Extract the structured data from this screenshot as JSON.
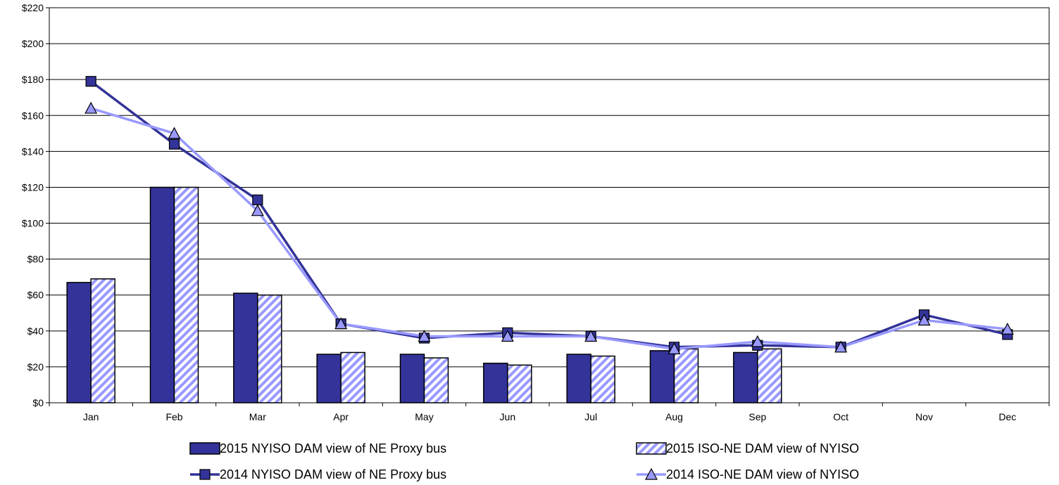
{
  "chart_data": {
    "type": "bar",
    "categories": [
      "Jan",
      "Feb",
      "Mar",
      "Apr",
      "May",
      "Jun",
      "Jul",
      "Aug",
      "Sep",
      "Oct",
      "Nov",
      "Dec"
    ],
    "ylim": [
      0,
      220
    ],
    "yticks": [
      "$0",
      "$20",
      "$40",
      "$60",
      "$80",
      "$100",
      "$120",
      "$140",
      "$160",
      "$180",
      "$200",
      "$220"
    ],
    "ytick_values": [
      0,
      20,
      40,
      60,
      80,
      100,
      120,
      140,
      160,
      180,
      200,
      220
    ],
    "grid": true,
    "legend_position": "bottom",
    "series": [
      {
        "name": "2015 NYISO DAM view of NE Proxy bus",
        "kind": "bar",
        "color": "#333399",
        "pattern": "solid",
        "values": [
          67,
          120,
          61,
          27,
          27,
          22,
          27,
          29,
          28,
          null,
          null,
          null
        ]
      },
      {
        "name": "2015 ISO-NE DAM view of NYISO",
        "kind": "bar",
        "color": "#9999ff",
        "pattern": "hatched",
        "values": [
          69,
          120,
          60,
          28,
          25,
          21,
          26,
          30,
          30,
          null,
          null,
          null
        ]
      },
      {
        "name": "2014 NYISO DAM view of NE Proxy bus",
        "kind": "line",
        "marker": "square",
        "color": "#333399",
        "values": [
          179,
          144,
          113,
          44,
          36,
          39,
          37,
          31,
          32,
          31,
          49,
          38
        ]
      },
      {
        "name": "2014 ISO-NE DAM view of NYISO",
        "kind": "line",
        "marker": "triangle",
        "color": "#9999ff",
        "values": [
          164,
          150,
          107,
          44,
          37,
          37,
          37,
          30,
          34,
          31,
          46,
          41
        ]
      }
    ]
  }
}
